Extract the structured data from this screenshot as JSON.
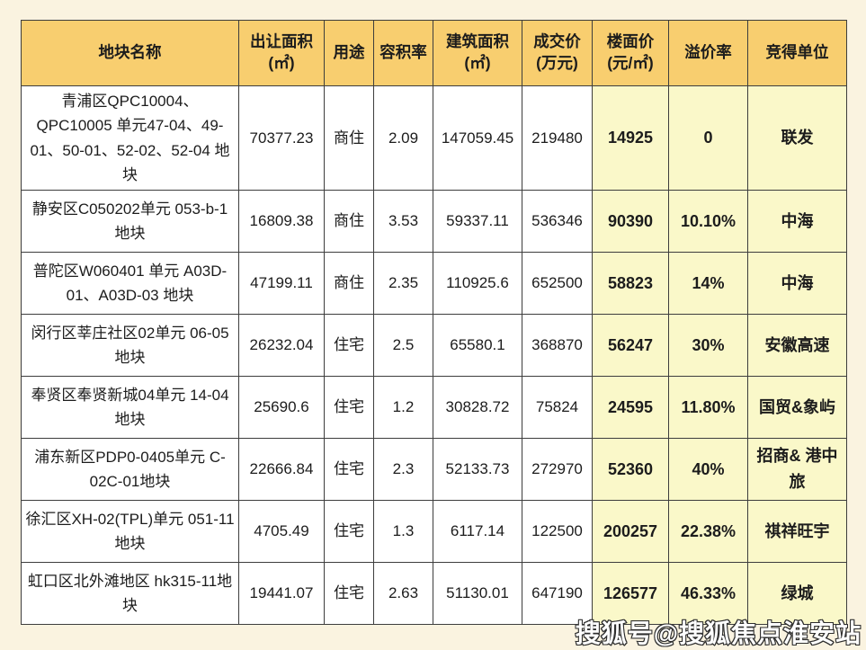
{
  "page": {
    "background_color": "#faf3e0"
  },
  "colors": {
    "header_bg": "#f8ce6f",
    "highlight_bg": "#faf8c9",
    "border": "#3d3d3d",
    "text": "#1c1c1c"
  },
  "chart_data": {
    "type": "table",
    "title": "",
    "columns": [
      {
        "label": "地块名称",
        "unit": ""
      },
      {
        "label": "出让面积",
        "unit": "(㎡)"
      },
      {
        "label": "用途",
        "unit": ""
      },
      {
        "label": "容积率",
        "unit": ""
      },
      {
        "label": "建筑面积",
        "unit": "(㎡)"
      },
      {
        "label": "成交价",
        "unit": "(万元)"
      },
      {
        "label": "楼面价",
        "unit": "(元/㎡)"
      },
      {
        "label": "溢价率",
        "unit": ""
      },
      {
        "label": "竞得单位",
        "unit": ""
      }
    ],
    "highlight_columns": [
      6,
      7,
      8
    ],
    "rows": [
      [
        "青浦区QPC10004、QPC10005 单元47-04、49-01、50-01、52-02、52-04 地块",
        "70377.23",
        "商住",
        "2.09",
        "147059.45",
        "219480",
        "14925",
        "0",
        "联发"
      ],
      [
        "静安区C050202单元 053-b-1地块",
        "16809.38",
        "商住",
        "3.53",
        "59337.11",
        "536346",
        "90390",
        "10.10%",
        "中海"
      ],
      [
        "普陀区W060401 单元 A03D-01、A03D-03 地块",
        "47199.11",
        "商住",
        "2.35",
        "110925.6",
        "652500",
        "58823",
        "14%",
        "中海"
      ],
      [
        "闵行区莘庄社区02单元 06-05地块",
        "26232.04",
        "住宅",
        "2.5",
        "65580.1",
        "368870",
        "56247",
        "30%",
        "安徽高速"
      ],
      [
        "奉贤区奉贤新城04单元 14-04地块",
        "25690.6",
        "住宅",
        "1.2",
        "30828.72",
        "75824",
        "24595",
        "11.80%",
        "国贸&象屿"
      ],
      [
        "浦东新区PDP0-0405单元 C-02C-01地块",
        "22666.84",
        "住宅",
        "2.3",
        "52133.73",
        "272970",
        "52360",
        "40%",
        "招商& 港中旅"
      ],
      [
        "徐汇区XH-02(TPL)单元 051-11地块",
        "4705.49",
        "住宅",
        "1.3",
        "6117.14",
        "122500",
        "200257",
        "22.38%",
        "祺祥旺宇"
      ],
      [
        "虹口区北外滩地区 hk315-11地块",
        "19441.07",
        "住宅",
        "2.63",
        "51130.01",
        "647190",
        "126577",
        "46.33%",
        "绿城"
      ]
    ]
  },
  "watermark": {
    "text": "搜狐号@搜狐焦点淮安站"
  }
}
